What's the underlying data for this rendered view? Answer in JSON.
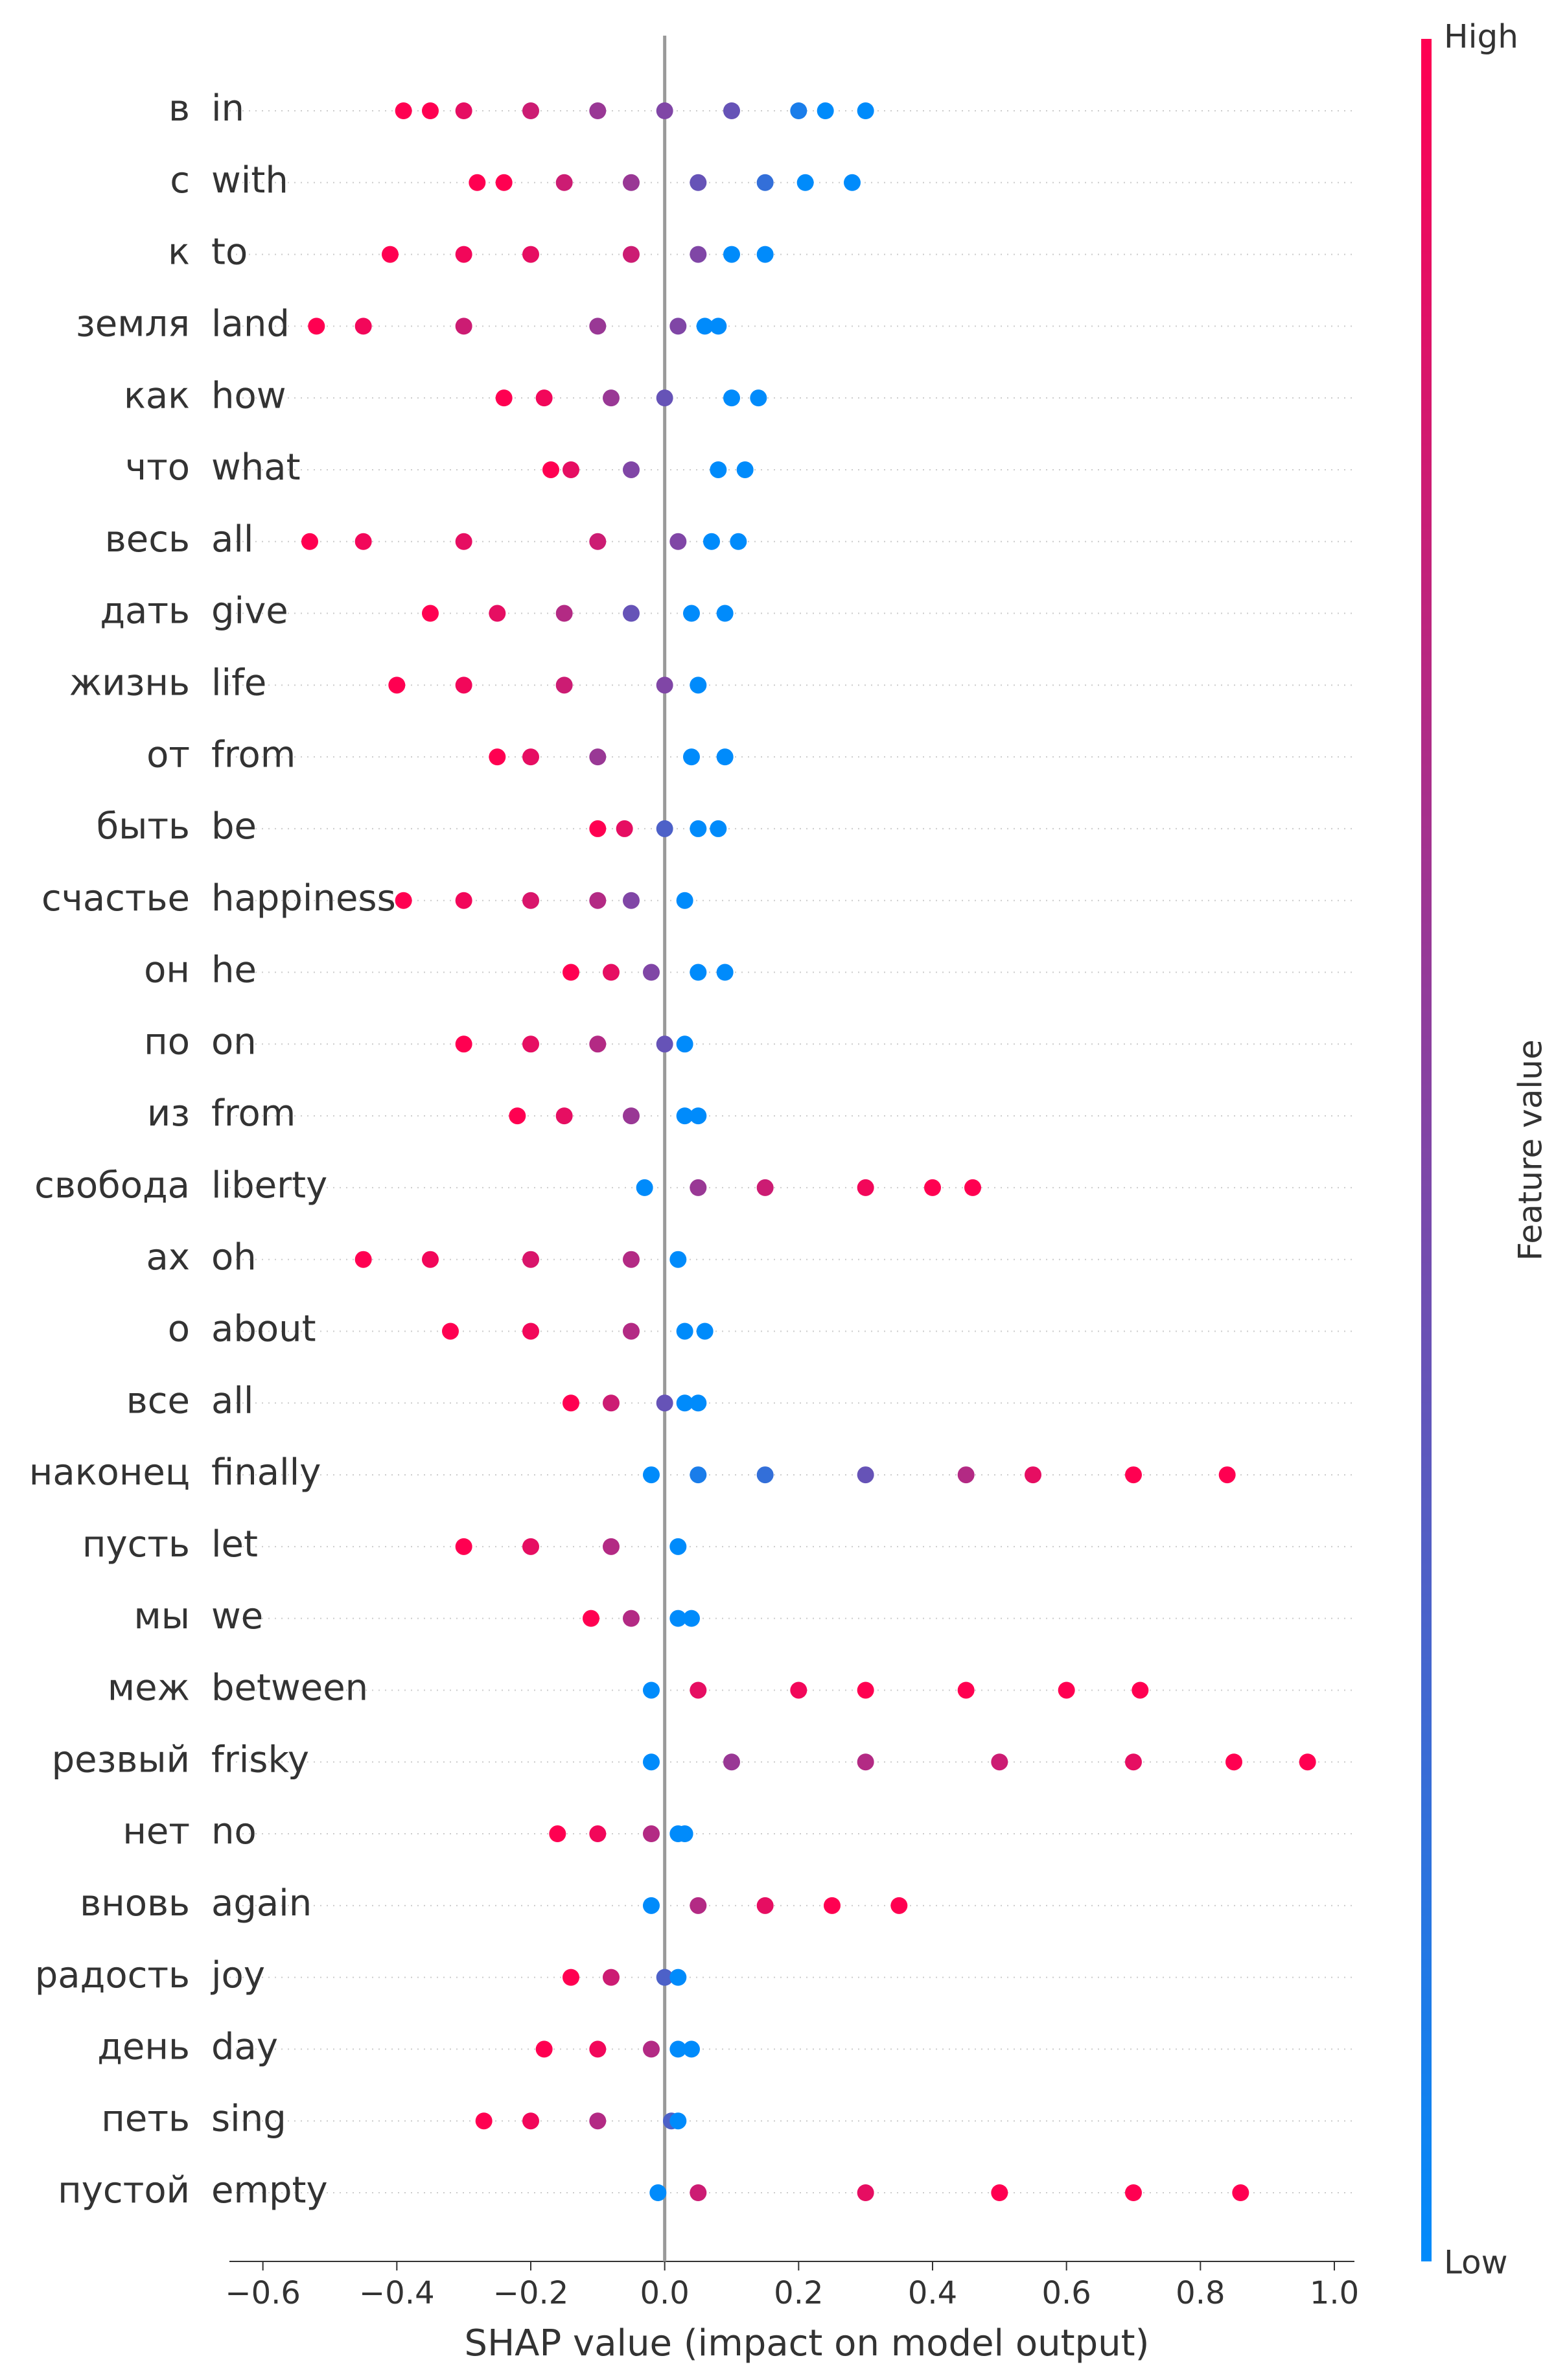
{
  "chart_data": {
    "type": "beeswarm",
    "xlabel": "SHAP value (impact on model output)",
    "xlim": [
      -0.65,
      1.03
    ],
    "xticks": [
      {
        "value": -0.6,
        "label": "−0.6"
      },
      {
        "value": -0.4,
        "label": "−0.4"
      },
      {
        "value": -0.2,
        "label": "−0.2"
      },
      {
        "value": 0,
        "label": "0.0"
      },
      0.2,
      0.4,
      0.6,
      0.8,
      {
        "value": 1,
        "label": "1.0"
      }
    ],
    "colorbar": {
      "label": "Feature value",
      "high": "High",
      "low": "Low",
      "colors": [
        "#008bfb",
        "#ff0051"
      ]
    },
    "series": [
      {
        "name": "в",
        "label": "in",
        "x": [
          -0.39,
          -0.35,
          -0.3,
          -0.2,
          -0.1,
          0,
          0.1,
          0.2,
          0.24,
          0.3
        ],
        "feature": [
          1,
          1,
          0.9,
          0.8,
          0.6,
          0.5,
          0.4,
          0.1,
          0,
          0
        ]
      },
      {
        "name": "с",
        "label": "with",
        "x": [
          -0.28,
          -0.24,
          -0.15,
          -0.05,
          0.05,
          0.15,
          0.21,
          0.28
        ],
        "feature": [
          1,
          1,
          0.8,
          0.6,
          0.4,
          0.2,
          0,
          0
        ]
      },
      {
        "name": "к",
        "label": "to",
        "x": [
          -0.41,
          -0.3,
          -0.2,
          -0.05,
          0.05,
          0.1,
          0.15
        ],
        "feature": [
          1,
          0.95,
          0.9,
          0.8,
          0.5,
          0,
          0
        ]
      },
      {
        "name": "земля",
        "label": "land",
        "x": [
          -0.52,
          -0.45,
          -0.3,
          -0.1,
          0.02,
          0.06,
          0.08
        ],
        "feature": [
          1,
          0.95,
          0.8,
          0.6,
          0.5,
          0,
          0
        ]
      },
      {
        "name": "как",
        "label": "how",
        "x": [
          -0.24,
          -0.18,
          -0.08,
          0,
          0.1,
          0.14
        ],
        "feature": [
          1,
          0.95,
          0.6,
          0.4,
          0,
          0
        ]
      },
      {
        "name": "что",
        "label": "what",
        "x": [
          -0.17,
          -0.14,
          -0.05,
          0.08,
          0.12
        ],
        "feature": [
          1,
          0.9,
          0.5,
          0,
          0
        ]
      },
      {
        "name": "весь",
        "label": "all",
        "x": [
          -0.53,
          -0.45,
          -0.3,
          -0.1,
          0.02,
          0.07,
          0.11
        ],
        "feature": [
          1,
          0.95,
          0.9,
          0.8,
          0.5,
          0,
          0
        ]
      },
      {
        "name": "дать",
        "label": "give",
        "x": [
          -0.35,
          -0.25,
          -0.15,
          -0.05,
          0.04,
          0.09
        ],
        "feature": [
          1,
          0.9,
          0.7,
          0.4,
          0,
          0
        ]
      },
      {
        "name": "жизнь",
        "label": "life",
        "x": [
          -0.4,
          -0.3,
          -0.15,
          0,
          0.05
        ],
        "feature": [
          1,
          0.95,
          0.8,
          0.5,
          0
        ]
      },
      {
        "name": "от",
        "label": "from",
        "x": [
          -0.25,
          -0.2,
          -0.1,
          0.04,
          0.09
        ],
        "feature": [
          1,
          0.9,
          0.6,
          0,
          0
        ]
      },
      {
        "name": "быть",
        "label": "be",
        "x": [
          -0.1,
          -0.06,
          0,
          0.05,
          0.08
        ],
        "feature": [
          1,
          0.9,
          0.3,
          0,
          0
        ]
      },
      {
        "name": "счастье",
        "label": "happiness",
        "x": [
          -0.39,
          -0.3,
          -0.2,
          -0.1,
          -0.05,
          0.03
        ],
        "feature": [
          1,
          0.95,
          0.85,
          0.7,
          0.5,
          0
        ]
      },
      {
        "name": "он",
        "label": "he",
        "x": [
          -0.14,
          -0.08,
          -0.02,
          0.05,
          0.09
        ],
        "feature": [
          1,
          0.9,
          0.5,
          0,
          0
        ]
      },
      {
        "name": "по",
        "label": "on",
        "x": [
          -0.3,
          -0.2,
          -0.1,
          0,
          0.03
        ],
        "feature": [
          1,
          0.9,
          0.7,
          0.4,
          0
        ]
      },
      {
        "name": "из",
        "label": "from",
        "x": [
          -0.22,
          -0.15,
          -0.05,
          0.03,
          0.05
        ],
        "feature": [
          1,
          0.9,
          0.6,
          0,
          0
        ]
      },
      {
        "name": "свобода",
        "label": "liberty",
        "x": [
          -0.03,
          0.05,
          0.15,
          0.3,
          0.4,
          0.46
        ],
        "feature": [
          0,
          0.6,
          0.8,
          0.95,
          1,
          1
        ]
      },
      {
        "name": "ах",
        "label": "oh",
        "x": [
          -0.45,
          -0.35,
          -0.2,
          -0.05,
          0.02
        ],
        "feature": [
          1,
          0.95,
          0.85,
          0.7,
          0
        ]
      },
      {
        "name": "о",
        "label": "about",
        "x": [
          -0.32,
          -0.2,
          -0.05,
          0.03,
          0.06
        ],
        "feature": [
          1,
          0.95,
          0.7,
          0,
          0
        ]
      },
      {
        "name": "все",
        "label": "all",
        "x": [
          -0.14,
          -0.08,
          0,
          0.03,
          0.05
        ],
        "feature": [
          1,
          0.8,
          0.4,
          0,
          0
        ]
      },
      {
        "name": "наконец",
        "label": "finally",
        "x": [
          -0.02,
          0.05,
          0.15,
          0.3,
          0.45,
          0.55,
          0.7,
          0.84
        ],
        "feature": [
          0,
          0.1,
          0.2,
          0.4,
          0.7,
          0.9,
          1,
          1
        ]
      },
      {
        "name": "пусть",
        "label": "let",
        "x": [
          -0.3,
          -0.2,
          -0.08,
          0.02
        ],
        "feature": [
          1,
          0.9,
          0.7,
          0
        ]
      },
      {
        "name": "мы",
        "label": "we",
        "x": [
          -0.11,
          -0.05,
          0.02,
          0.04
        ],
        "feature": [
          1,
          0.7,
          0,
          0
        ]
      },
      {
        "name": "меж",
        "label": "between",
        "x": [
          -0.02,
          0.05,
          0.2,
          0.3,
          0.45,
          0.6,
          0.71
        ],
        "feature": [
          0,
          0.9,
          0.95,
          1,
          1,
          1,
          1
        ]
      },
      {
        "name": "резвый",
        "label": "frisky",
        "x": [
          -0.02,
          0.1,
          0.3,
          0.5,
          0.7,
          0.85,
          0.96
        ],
        "feature": [
          0,
          0.6,
          0.7,
          0.8,
          0.9,
          1,
          1
        ]
      },
      {
        "name": "нет",
        "label": "no",
        "x": [
          -0.16,
          -0.1,
          -0.02,
          0.02,
          0.03
        ],
        "feature": [
          1,
          0.95,
          0.7,
          0,
          0
        ]
      },
      {
        "name": "вновь",
        "label": "again",
        "x": [
          -0.02,
          0.05,
          0.15,
          0.25,
          0.35
        ],
        "feature": [
          0,
          0.7,
          0.9,
          1,
          1
        ]
      },
      {
        "name": "радость",
        "label": "joy",
        "x": [
          -0.14,
          -0.08,
          0,
          0.02
        ],
        "feature": [
          1,
          0.8,
          0.3,
          0
        ]
      },
      {
        "name": "день",
        "label": "day",
        "x": [
          -0.18,
          -0.1,
          -0.02,
          0.02,
          0.04
        ],
        "feature": [
          1,
          0.95,
          0.7,
          0,
          0
        ]
      },
      {
        "name": "петь",
        "label": "sing",
        "x": [
          -0.27,
          -0.2,
          -0.1,
          0.01,
          0.02
        ],
        "feature": [
          1,
          0.95,
          0.7,
          0.3,
          0
        ]
      },
      {
        "name": "пустой",
        "label": "empty",
        "x": [
          -0.01,
          0.05,
          0.3,
          0.5,
          0.7,
          0.86
        ],
        "feature": [
          0,
          0.8,
          0.9,
          1,
          1,
          1
        ]
      }
    ]
  }
}
